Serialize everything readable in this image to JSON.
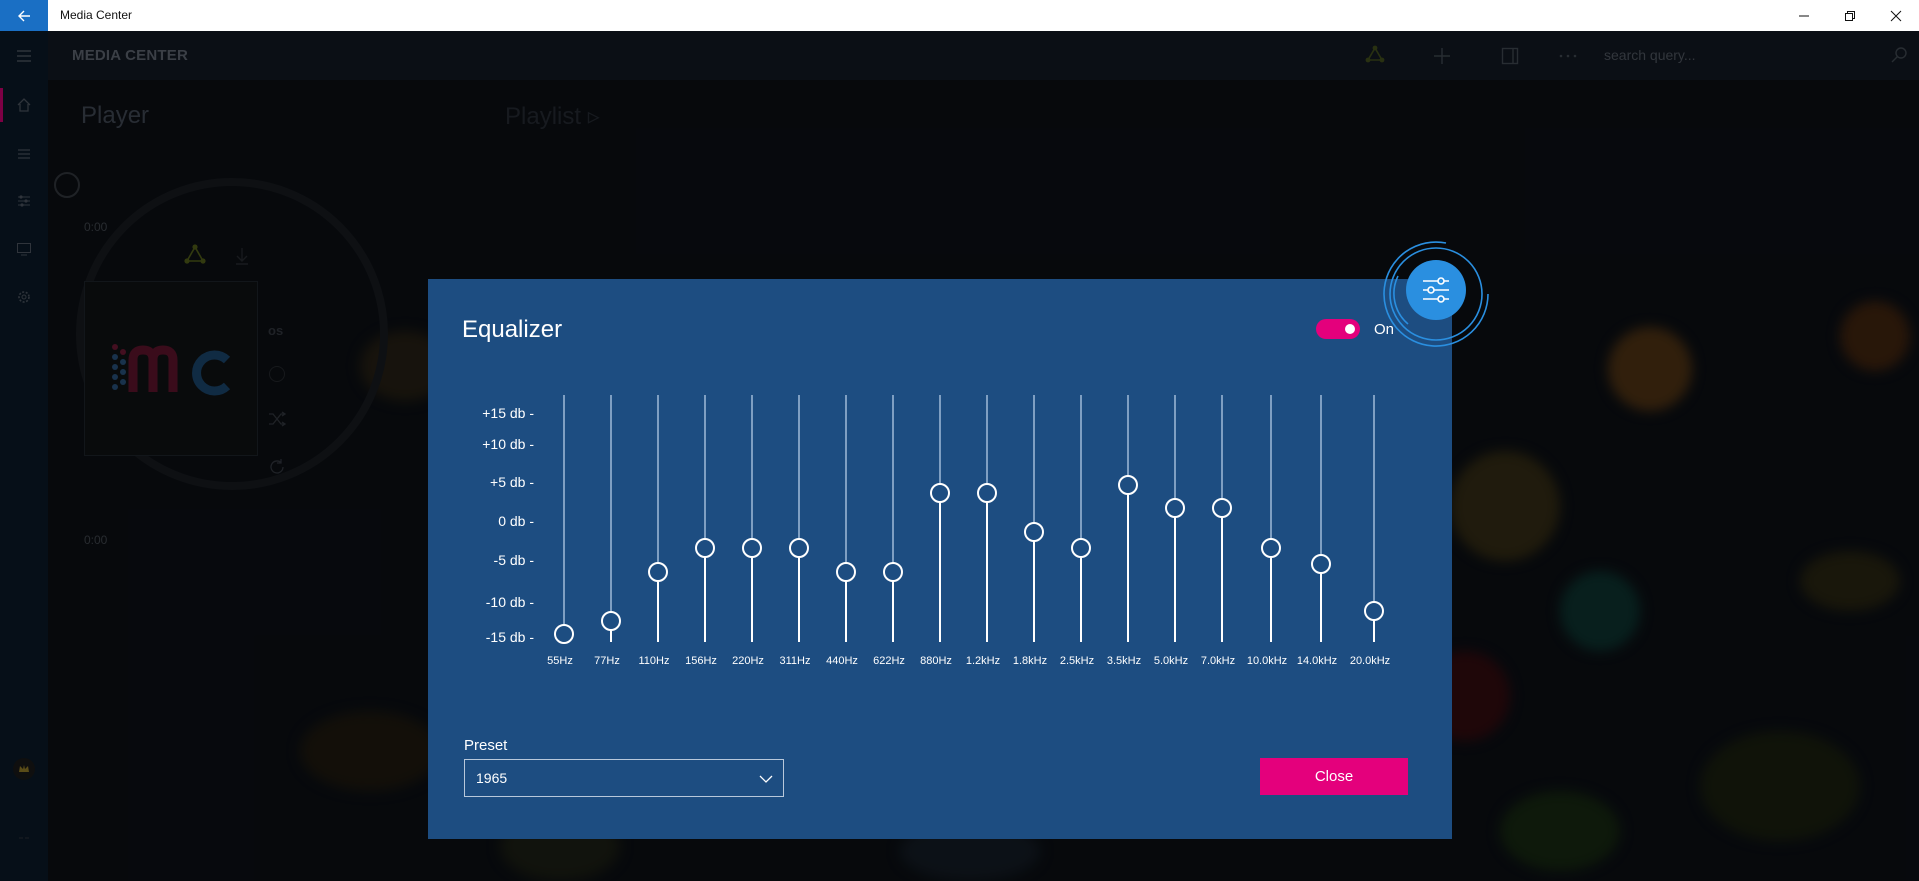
{
  "window": {
    "title": "Media Center",
    "controls": {
      "minimize": "—",
      "restore": "❐",
      "close": "✕"
    }
  },
  "topbar": {
    "brand": "MEDIA CENTER",
    "search_placeholder": "search query..."
  },
  "player": {
    "title": "Player",
    "playlist_label": "Playlist ▹",
    "time_start": "0:00",
    "time_end": "0:00"
  },
  "equalizer": {
    "title": "Equalizer",
    "toggle_state": "On",
    "db_labels": [
      "+15 db  -",
      "+10 db  -",
      "+5 db  -",
      "0 db  -",
      "-5 db  -",
      "-10 db  -",
      "-15 db  -"
    ],
    "bands": [
      {
        "freq": "55Hz",
        "gain_db": -15
      },
      {
        "freq": "77Hz",
        "gain_db": -13
      },
      {
        "freq": "110Hz",
        "gain_db": -6.5
      },
      {
        "freq": "156Hz",
        "gain_db": -3.5
      },
      {
        "freq": "220Hz",
        "gain_db": -3.5
      },
      {
        "freq": "311Hz",
        "gain_db": -3.5
      },
      {
        "freq": "440Hz",
        "gain_db": -6.5
      },
      {
        "freq": "622Hz",
        "gain_db": -6.5
      },
      {
        "freq": "880Hz",
        "gain_db": 3.5
      },
      {
        "freq": "1.2kHz",
        "gain_db": 3.5
      },
      {
        "freq": "1.8kHz",
        "gain_db": -1.5
      },
      {
        "freq": "2.5kHz",
        "gain_db": -3.5
      },
      {
        "freq": "3.5kHz",
        "gain_db": 4.5
      },
      {
        "freq": "5.0kHz",
        "gain_db": 1.5
      },
      {
        "freq": "7.0kHz",
        "gain_db": 1.5
      },
      {
        "freq": "10.0kHz",
        "gain_db": -3.5
      },
      {
        "freq": "14.0kHz",
        "gain_db": -5.5
      },
      {
        "freq": "20.0kHz",
        "gain_db": -11.5
      }
    ],
    "preset_label": "Preset",
    "preset_value": "1965",
    "close_label": "Close"
  },
  "colors": {
    "accent": "#e4007c",
    "dialog_bg": "#1d4d81",
    "badge": "#2a8fe0"
  }
}
